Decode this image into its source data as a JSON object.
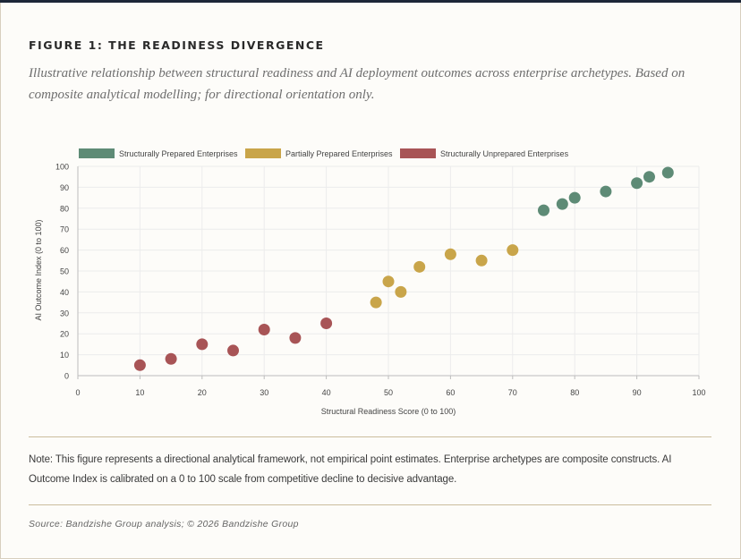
{
  "figure": {
    "title": "FIGURE 1: THE READINESS DIVERGENCE",
    "subtitle": "Illustrative relationship between structural readiness and AI deployment outcomes across enterprise archetypes. Based on composite analytical modelling; for directional orientation only.",
    "note": "Note: This figure represents a directional analytical framework, not empirical point estimates. Enterprise archetypes are composite constructs. AI Outcome Index is calibrated on a 0 to 100 scale from competitive decline to decisive advantage.",
    "source": "Source: Bandzishe Group analysis; © 2026 Bandzishe Group"
  },
  "chart_data": {
    "type": "scatter",
    "title": "",
    "xlabel": "Structural Readiness Score (0 to 100)",
    "ylabel": "AI Outcome Index (0 to 100)",
    "xlim": [
      0,
      100
    ],
    "ylim": [
      0,
      100
    ],
    "xticks": [
      0,
      10,
      20,
      30,
      40,
      50,
      60,
      70,
      80,
      90,
      100
    ],
    "yticks": [
      0,
      10,
      20,
      30,
      40,
      50,
      60,
      70,
      80,
      90,
      100
    ],
    "grid": true,
    "legend_position": "top-left",
    "series": [
      {
        "name": "Structurally Prepared Enterprises",
        "color": "#5e8b76",
        "points": [
          [
            75,
            79
          ],
          [
            78,
            82
          ],
          [
            80,
            85
          ],
          [
            85,
            88
          ],
          [
            90,
            92
          ],
          [
            92,
            95
          ],
          [
            95,
            97
          ]
        ]
      },
      {
        "name": "Partially Prepared Enterprises",
        "color": "#c9a54a",
        "points": [
          [
            48,
            35
          ],
          [
            50,
            45
          ],
          [
            52,
            40
          ],
          [
            55,
            52
          ],
          [
            60,
            58
          ],
          [
            65,
            55
          ],
          [
            70,
            60
          ]
        ]
      },
      {
        "name": "Structurally Unprepared Enterprises",
        "color": "#a85456",
        "points": [
          [
            10,
            5
          ],
          [
            15,
            8
          ],
          [
            20,
            15
          ],
          [
            25,
            12
          ],
          [
            30,
            22
          ],
          [
            35,
            18
          ],
          [
            40,
            25
          ]
        ]
      }
    ]
  }
}
